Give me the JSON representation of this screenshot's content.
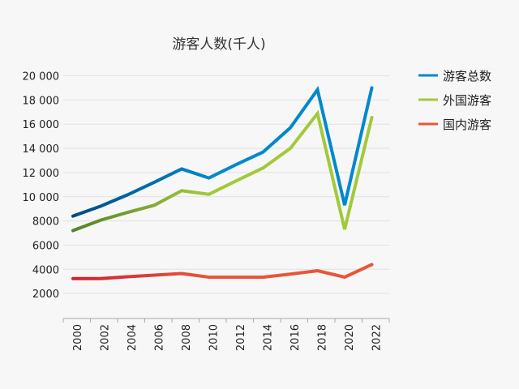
{
  "chart_data": {
    "type": "line",
    "title": "游客人数(千人)",
    "xlabel": "",
    "ylabel": "",
    "x": [
      2000,
      2002,
      2004,
      2006,
      2008,
      2010,
      2012,
      2014,
      2016,
      2018,
      2020,
      2022
    ],
    "x_tick_labels": [
      "2000",
      "2002",
      "2004",
      "2006",
      "2008",
      "2010",
      "2012",
      "2014",
      "2016",
      "2018",
      "2020",
      "2022"
    ],
    "y_ticks": [
      2000,
      4000,
      6000,
      8000,
      10000,
      12000,
      14000,
      16000,
      18000,
      20000
    ],
    "y_tick_labels": [
      "2000",
      "4000",
      "6000",
      "8000",
      "10 000",
      "12 000",
      "14 000",
      "16 000",
      "18 000",
      "20 000"
    ],
    "ylim": [
      0,
      20000
    ],
    "grid": true,
    "legend_position": "right",
    "series": [
      {
        "name": "游客总数",
        "color": "#0088cc",
        "color_start": "#004a80",
        "values": [
          8400,
          9200,
          10150,
          11200,
          12300,
          11550,
          12650,
          13700,
          15700,
          18850,
          9300,
          19000
        ]
      },
      {
        "name": "外国游客",
        "color": "#a2c93a",
        "color_start": "#55822a",
        "values": [
          7200,
          8050,
          8700,
          9300,
          10500,
          10200,
          11300,
          12380,
          14000,
          16880,
          7300,
          16550
        ]
      },
      {
        "name": "国内游客",
        "color": "#e8553a",
        "color_start": "#cc2233",
        "values": [
          3230,
          3230,
          3380,
          3520,
          3650,
          3350,
          3350,
          3350,
          3600,
          3880,
          3350,
          4390
        ]
      }
    ]
  }
}
